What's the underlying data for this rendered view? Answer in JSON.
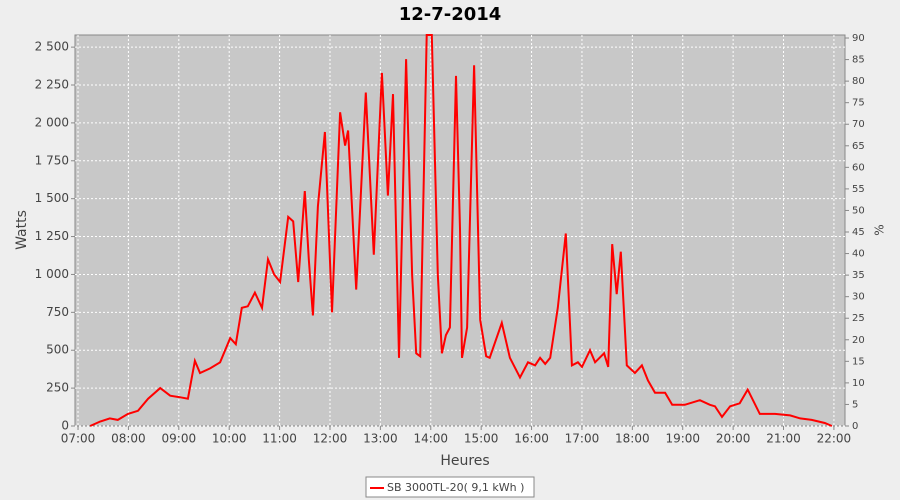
{
  "chart_data": {
    "type": "line",
    "title": "12-7-2014",
    "x_label": "Heures",
    "y_label": "Watts",
    "y2_label": "%",
    "grid": true,
    "legend": "bottom",
    "xlim": [
      6.94,
      22.22
    ],
    "xticks": [
      {
        "value": 7,
        "label": "07:00"
      },
      {
        "value": 8,
        "label": "08:00"
      },
      {
        "value": 9,
        "label": "09:00"
      },
      {
        "value": 10,
        "label": "10:00"
      },
      {
        "value": 11,
        "label": "11:00"
      },
      {
        "value": 12,
        "label": "12:00"
      },
      {
        "value": 13,
        "label": "13:00"
      },
      {
        "value": 14,
        "label": "14:00"
      },
      {
        "value": 15,
        "label": "15:00"
      },
      {
        "value": 16,
        "label": "16:00"
      },
      {
        "value": 17,
        "label": "17:00"
      },
      {
        "value": 18,
        "label": "18:00"
      },
      {
        "value": 19,
        "label": "19:00"
      },
      {
        "value": 20,
        "label": "20:00"
      },
      {
        "value": 21,
        "label": "21:00"
      },
      {
        "value": 22,
        "label": "22:00"
      }
    ],
    "ylim": [
      0,
      2580
    ],
    "yticks": [
      0,
      250,
      500,
      750,
      {
        "value": 1000,
        "label": "1 000"
      },
      {
        "value": 1250,
        "label": "1 250"
      },
      {
        "value": 1500,
        "label": "1 500"
      },
      {
        "value": 1750,
        "label": "1 750"
      },
      {
        "value": 2000,
        "label": "2 000"
      },
      {
        "value": 2250,
        "label": "2 250"
      },
      {
        "value": 2500,
        "label": "2 500"
      }
    ],
    "y2lim": [
      0,
      90.7
    ],
    "y2ticks": [
      0,
      5,
      10,
      15,
      20,
      25,
      30,
      35,
      40,
      45,
      50,
      55,
      60,
      65,
      70,
      75,
      80,
      85,
      90
    ],
    "x": [
      7.24,
      7.44,
      7.63,
      7.79,
      7.99,
      8.19,
      8.39,
      8.63,
      8.83,
      9.02,
      9.18,
      9.32,
      9.42,
      9.62,
      9.82,
      10.02,
      10.13,
      10.25,
      10.37,
      10.51,
      10.65,
      10.77,
      10.89,
      11.01,
      11.17,
      11.27,
      11.37,
      11.5,
      11.58,
      11.66,
      11.76,
      11.9,
      12.04,
      12.2,
      12.3,
      12.36,
      12.52,
      12.71,
      12.87,
      13.03,
      13.15,
      13.25,
      13.37,
      13.51,
      13.63,
      13.71,
      13.79,
      13.92,
      14.02,
      14.14,
      14.22,
      14.3,
      14.38,
      14.5,
      14.58,
      14.62,
      14.72,
      14.86,
      14.98,
      15.1,
      15.17,
      15.41,
      15.57,
      15.77,
      15.93,
      16.07,
      16.17,
      16.27,
      16.37,
      16.52,
      16.68,
      16.8,
      16.92,
      17,
      17.16,
      17.26,
      17.44,
      17.52,
      17.6,
      17.69,
      17.77,
      17.89,
      18.05,
      18.19,
      18.31,
      18.45,
      18.65,
      18.79,
      19.04,
      19.34,
      19.54,
      19.64,
      19.78,
      19.94,
      20.13,
      20.29,
      20.53,
      20.83,
      21.13,
      21.33,
      21.56,
      21.82,
      21.96
    ],
    "series": [
      {
        "name": "SB 3000TL-20( 9,1 kWh )",
        "color": "#ff0000",
        "values": [
          0,
          30,
          50,
          40,
          80,
          100,
          180,
          250,
          200,
          190,
          180,
          430,
          350,
          380,
          420,
          580,
          540,
          780,
          790,
          880,
          780,
          1100,
          1000,
          950,
          1380,
          1350,
          950,
          1550,
          1100,
          730,
          1450,
          1940,
          750,
          2070,
          1850,
          1950,
          900,
          2200,
          1130,
          2330,
          1520,
          2190,
          450,
          2420,
          1000,
          480,
          460,
          2580,
          2580,
          1000,
          480,
          600,
          650,
          2310,
          1300,
          450,
          650,
          2380,
          700,
          460,
          450,
          680,
          450,
          320,
          420,
          400,
          450,
          410,
          450,
          780,
          1270,
          400,
          420,
          390,
          500,
          420,
          480,
          390,
          1200,
          870,
          1150,
          400,
          350,
          400,
          300,
          220,
          220,
          140,
          140,
          170,
          140,
          130,
          60,
          130,
          150,
          240,
          80,
          80,
          70,
          50,
          40,
          20,
          0
        ]
      }
    ]
  }
}
